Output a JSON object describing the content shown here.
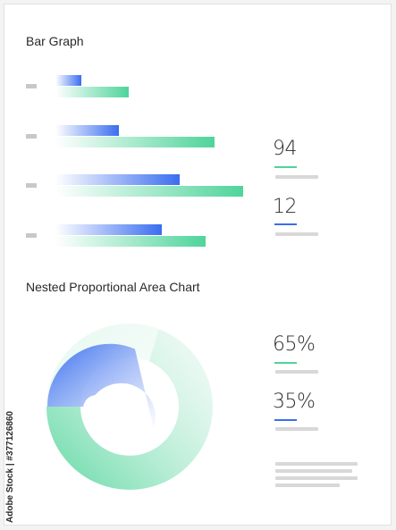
{
  "bar_section": {
    "title": "Bar Graph"
  },
  "area_section": {
    "title": "Nested Proportional Area Chart"
  },
  "chart_data": [
    {
      "type": "bar",
      "orientation": "horizontal",
      "title": "Bar Graph",
      "categories": [
        "",
        "",
        "",
        ""
      ],
      "series": [
        {
          "values": [
            29,
            71,
            139,
            119
          ],
          "color": "#3a6df0"
        },
        {
          "values": [
            82,
            178,
            210,
            168
          ],
          "color": "#4fd49a"
        }
      ],
      "legend": "none",
      "grid": false
    },
    {
      "type": "pie",
      "title": "Nested Proportional Area Chart",
      "slices": [
        {
          "value": 35,
          "color": "#3a6df0"
        },
        {
          "value": 65,
          "color": "#4fd49a"
        }
      ]
    }
  ],
  "stats": [
    {
      "value": "94",
      "color": "#4fd49a"
    },
    {
      "value": "12",
      "color": "#3a6df0"
    },
    {
      "value": "65%",
      "color": "#4fd49a"
    },
    {
      "value": "35%",
      "color": "#3a6df0"
    }
  ],
  "watermark": "Adobe Stock | #377126860"
}
